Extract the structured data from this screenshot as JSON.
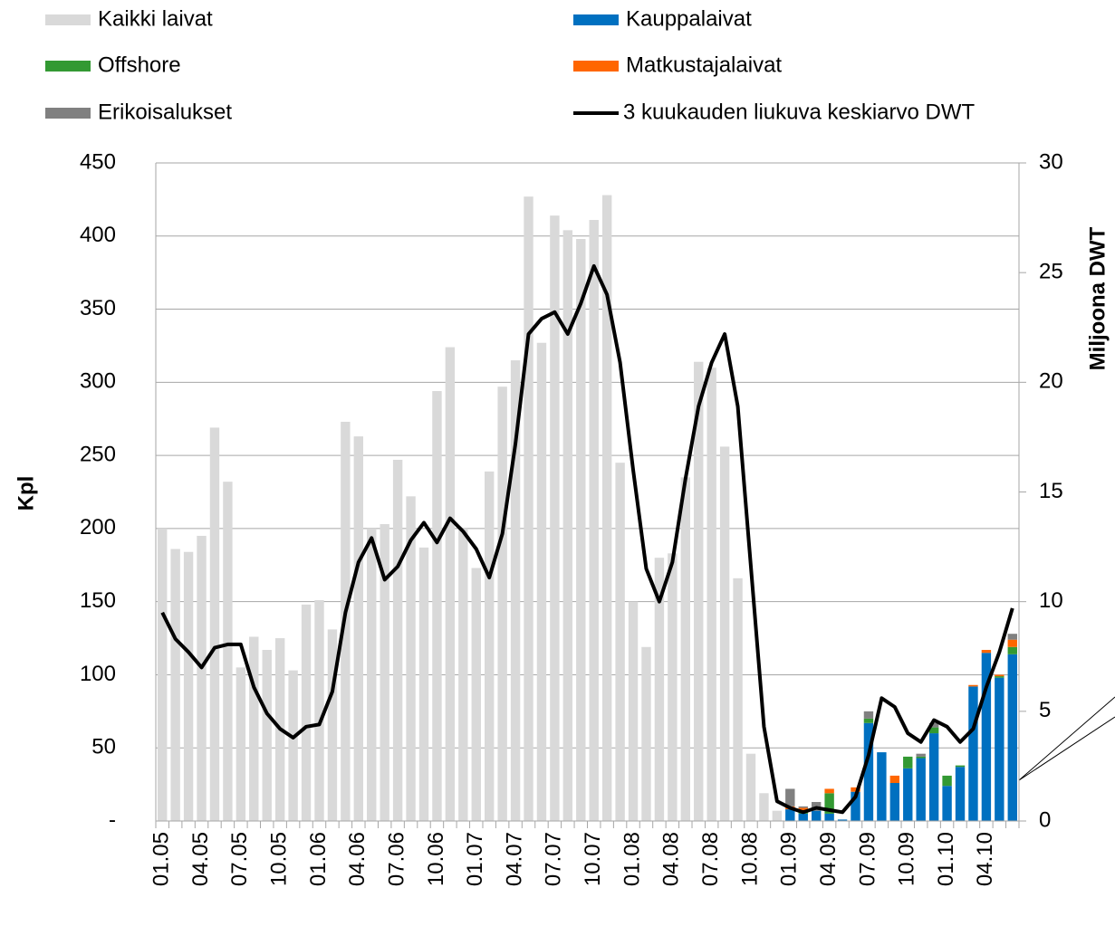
{
  "chart_data": {
    "type": "bar",
    "stacked": true,
    "categories": [
      "01.05",
      null,
      null,
      "04.05",
      null,
      null,
      "07.05",
      null,
      null,
      "10.05",
      null,
      null,
      "01.06",
      null,
      null,
      "04.06",
      null,
      null,
      "07.06",
      null,
      null,
      "10.06",
      null,
      null,
      "01.07",
      null,
      null,
      "04.07",
      null,
      null,
      "07.07",
      null,
      null,
      "10.07",
      null,
      null,
      "01.08",
      null,
      null,
      "04.08",
      null,
      null,
      "07.08",
      null,
      null,
      "10.08",
      null,
      null,
      "01.09",
      null,
      null,
      "04.09",
      null,
      null,
      "07.09",
      null,
      null,
      "10.09",
      null,
      null,
      "01.10",
      null,
      null,
      "04.10",
      null,
      null
    ],
    "series": [
      {
        "name": "Kaikki laivat",
        "color": "#d9d9d9",
        "values": [
          200,
          186,
          184,
          195,
          269,
          232,
          105,
          126,
          117,
          125,
          103,
          148,
          151,
          131,
          273,
          263,
          200,
          203,
          247,
          222,
          187,
          294,
          324,
          200,
          173,
          239,
          297,
          315,
          427,
          327,
          414,
          404,
          398,
          411,
          428,
          245,
          150,
          119,
          180,
          183,
          235,
          314,
          310,
          256,
          166,
          46,
          19,
          7,
          null,
          null,
          null,
          null,
          null,
          null,
          null,
          null,
          null,
          null,
          null,
          null,
          null,
          null,
          null,
          null,
          null,
          null
        ]
      },
      {
        "name": "Kauppalaivat",
        "color": "#0070c0",
        "values": [
          null,
          null,
          null,
          null,
          null,
          null,
          null,
          null,
          null,
          null,
          null,
          null,
          null,
          null,
          null,
          null,
          null,
          null,
          null,
          null,
          null,
          null,
          null,
          null,
          null,
          null,
          null,
          null,
          null,
          null,
          null,
          null,
          null,
          null,
          null,
          null,
          null,
          null,
          null,
          null,
          null,
          null,
          null,
          null,
          null,
          null,
          null,
          null,
          8,
          5,
          7,
          5,
          1,
          20,
          67,
          47,
          26,
          36,
          43,
          60,
          24,
          37,
          92,
          115,
          98,
          114
        ]
      },
      {
        "name": "Offshore",
        "color": "#339933",
        "values": [
          null,
          null,
          null,
          null,
          null,
          null,
          null,
          null,
          null,
          null,
          null,
          null,
          null,
          null,
          null,
          null,
          null,
          null,
          null,
          null,
          null,
          null,
          null,
          null,
          null,
          null,
          null,
          null,
          null,
          null,
          null,
          null,
          null,
          null,
          null,
          null,
          null,
          null,
          null,
          null,
          null,
          null,
          null,
          null,
          null,
          null,
          null,
          null,
          0,
          2,
          0,
          14,
          0,
          0,
          3,
          0,
          0,
          8,
          1,
          4,
          7,
          1,
          0,
          0,
          1,
          5
        ]
      },
      {
        "name": "Matkustajalaivat",
        "color": "#ff6600",
        "values": [
          null,
          null,
          null,
          null,
          null,
          null,
          null,
          null,
          null,
          null,
          null,
          null,
          null,
          null,
          null,
          null,
          null,
          null,
          null,
          null,
          null,
          null,
          null,
          null,
          null,
          null,
          null,
          null,
          null,
          null,
          null,
          null,
          null,
          null,
          null,
          null,
          null,
          null,
          null,
          null,
          null,
          null,
          null,
          null,
          null,
          null,
          null,
          null,
          2,
          2,
          0,
          3,
          0,
          3,
          0,
          0,
          5,
          0,
          0,
          0,
          0,
          0,
          1,
          2,
          1,
          5
        ]
      },
      {
        "name": "Erikoisalukset",
        "color": "#808080",
        "values": [
          null,
          null,
          null,
          null,
          null,
          null,
          null,
          null,
          null,
          null,
          null,
          null,
          null,
          null,
          null,
          null,
          null,
          null,
          null,
          null,
          null,
          null,
          null,
          null,
          null,
          null,
          null,
          null,
          null,
          null,
          null,
          null,
          null,
          null,
          null,
          null,
          null,
          null,
          null,
          null,
          null,
          null,
          null,
          null,
          null,
          null,
          null,
          null,
          12,
          1,
          6,
          0,
          0,
          0,
          5,
          0,
          0,
          0,
          2,
          3,
          0,
          0,
          0,
          0,
          0,
          4
        ]
      },
      {
        "name": "3 kuukauden liukuva keskiarvo DWT",
        "type": "line",
        "axis": "y2",
        "color": "#000000",
        "values": [
          9.5,
          8.3,
          7.7,
          7.0,
          7.9,
          8.05,
          8.05,
          6.1,
          4.9,
          4.2,
          3.8,
          4.3,
          4.4,
          5.9,
          9.5,
          11.8,
          12.9,
          11.0,
          11.6,
          12.8,
          13.6,
          12.7,
          13.8,
          13.2,
          12.4,
          11.1,
          13.1,
          17.2,
          22.2,
          22.9,
          23.2,
          22.2,
          23.6,
          25.3,
          24.0,
          20.9,
          16.0,
          11.5,
          10.0,
          11.8,
          15.6,
          18.9,
          20.9,
          22.2,
          18.9,
          11.6,
          4.3,
          0.9,
          0.6,
          0.4,
          0.6,
          0.5,
          0.4,
          1.1,
          3.0,
          5.6,
          5.2,
          4.0,
          3.6,
          4.6,
          4.3,
          3.6,
          4.2,
          6.1,
          7.7,
          9.7
        ]
      }
    ],
    "y_label": "Kpl",
    "y2_label": "Miljoona DWT",
    "ylim": [
      0,
      450
    ],
    "yticks": [
      {
        "value": 0,
        "label": "-"
      },
      50,
      100,
      150,
      200,
      250,
      300,
      350,
      400,
      450
    ],
    "y2lim": [
      0,
      30
    ],
    "y2ticks": [
      0,
      5,
      10,
      15,
      20,
      25,
      30
    ],
    "grid": true,
    "legend": "top"
  }
}
